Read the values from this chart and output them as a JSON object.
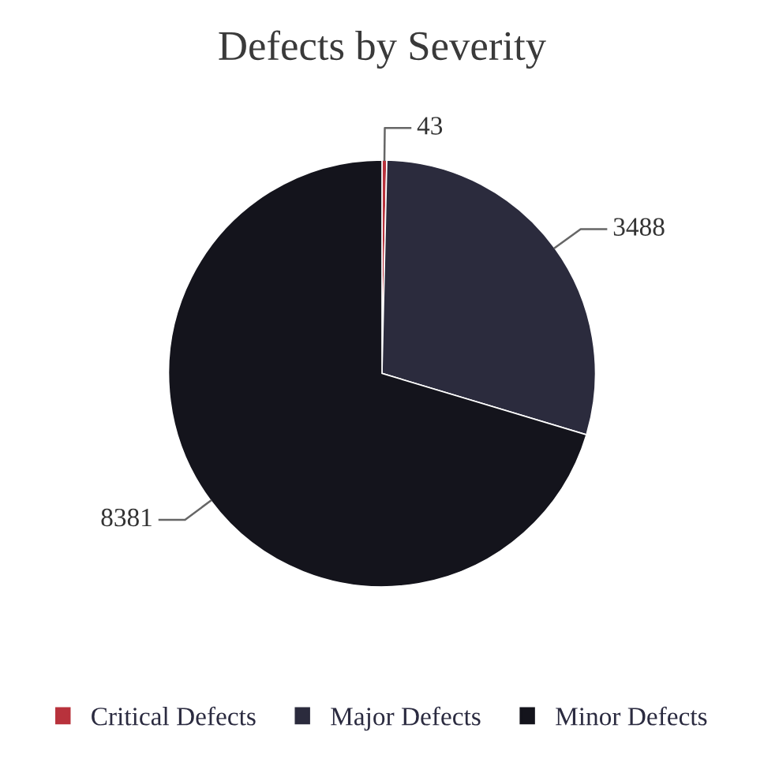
{
  "chart_data": {
    "type": "pie",
    "title": "Defects by Severity",
    "categories": [
      "Critical Defects",
      "Major Defects",
      "Minor Defects"
    ],
    "values": [
      43,
      3488,
      8381
    ],
    "colors": [
      "#b8323c",
      "#2b2b3d",
      "#14141c"
    ],
    "data_labels": true,
    "legend": "bottom"
  }
}
